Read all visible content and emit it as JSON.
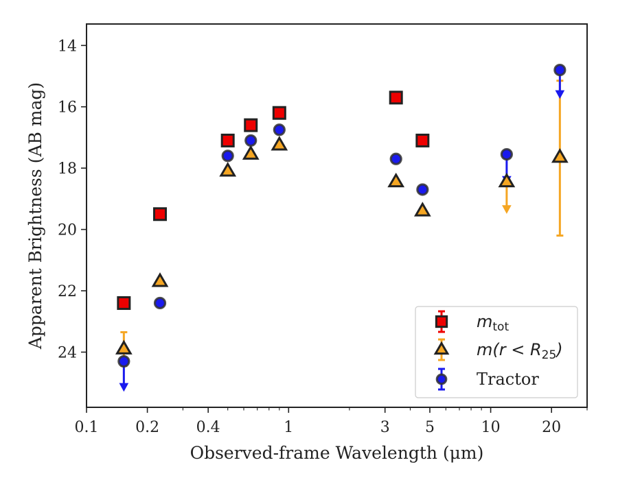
{
  "chart_data": {
    "type": "scatter",
    "title": "",
    "xlabel": "Observed-frame Wavelength (μm)",
    "ylabel": "Apparent Brightness (AB mag)",
    "x_scale": "log",
    "xlim": [
      0.1,
      30
    ],
    "ylim": [
      25.8,
      13.3
    ],
    "y_inverted": true,
    "x_ticks": [
      0.1,
      0.2,
      0.4,
      1,
      3,
      5,
      10,
      20
    ],
    "x_tick_labels": [
      "0.1",
      "0.2",
      "0.4",
      "1",
      "3",
      "5",
      "10",
      "20"
    ],
    "y_ticks": [
      14,
      16,
      18,
      20,
      22,
      24
    ],
    "y_tick_labels": [
      "14",
      "16",
      "18",
      "20",
      "22",
      "24"
    ],
    "grid": false,
    "legend_position": "lower-right",
    "series": [
      {
        "label_main": "m",
        "label_sub": "tot",
        "marker": "square",
        "color": "#ee0000",
        "edge_color": "#222222",
        "points": [
          {
            "x": 0.153,
            "y": 22.4
          },
          {
            "x": 0.231,
            "y": 19.5
          },
          {
            "x": 0.5,
            "y": 17.1
          },
          {
            "x": 0.65,
            "y": 16.6
          },
          {
            "x": 0.9,
            "y": 16.2
          },
          {
            "x": 3.4,
            "y": 15.7
          },
          {
            "x": 4.6,
            "y": 17.1
          }
        ]
      },
      {
        "label_main": "m(r < R",
        "label_sub": "25",
        "label_tail": ")",
        "marker": "triangle",
        "color": "#f5a623",
        "edge_color": "#222222",
        "points": [
          {
            "x": 0.153,
            "y": 23.9,
            "err": [
              23.35,
              24.45
            ]
          },
          {
            "x": 0.231,
            "y": 21.7
          },
          {
            "x": 0.5,
            "y": 18.1
          },
          {
            "x": 0.65,
            "y": 17.55
          },
          {
            "x": 0.9,
            "y": 17.25
          },
          {
            "x": 3.4,
            "y": 18.45
          },
          {
            "x": 4.6,
            "y": 19.4
          },
          {
            "x": 12,
            "y": 18.45,
            "upper_limit_to": 19.4
          },
          {
            "x": 22,
            "y": 17.65,
            "err": [
              15.15,
              20.2
            ]
          }
        ]
      },
      {
        "label_main": "Tractor",
        "marker": "circle",
        "color": "#1a1aee",
        "edge_color": "#333333",
        "points": [
          {
            "x": 0.153,
            "y": 24.3,
            "upper_limit_to": 25.2
          },
          {
            "x": 0.231,
            "y": 22.4
          },
          {
            "x": 0.5,
            "y": 17.6
          },
          {
            "x": 0.65,
            "y": 17.1
          },
          {
            "x": 0.9,
            "y": 16.75
          },
          {
            "x": 3.4,
            "y": 17.7
          },
          {
            "x": 4.6,
            "y": 18.7
          },
          {
            "x": 12,
            "y": 17.55,
            "upper_limit_to": 18.45
          },
          {
            "x": 22,
            "y": 14.8,
            "upper_limit_to": 15.65
          }
        ]
      }
    ]
  }
}
